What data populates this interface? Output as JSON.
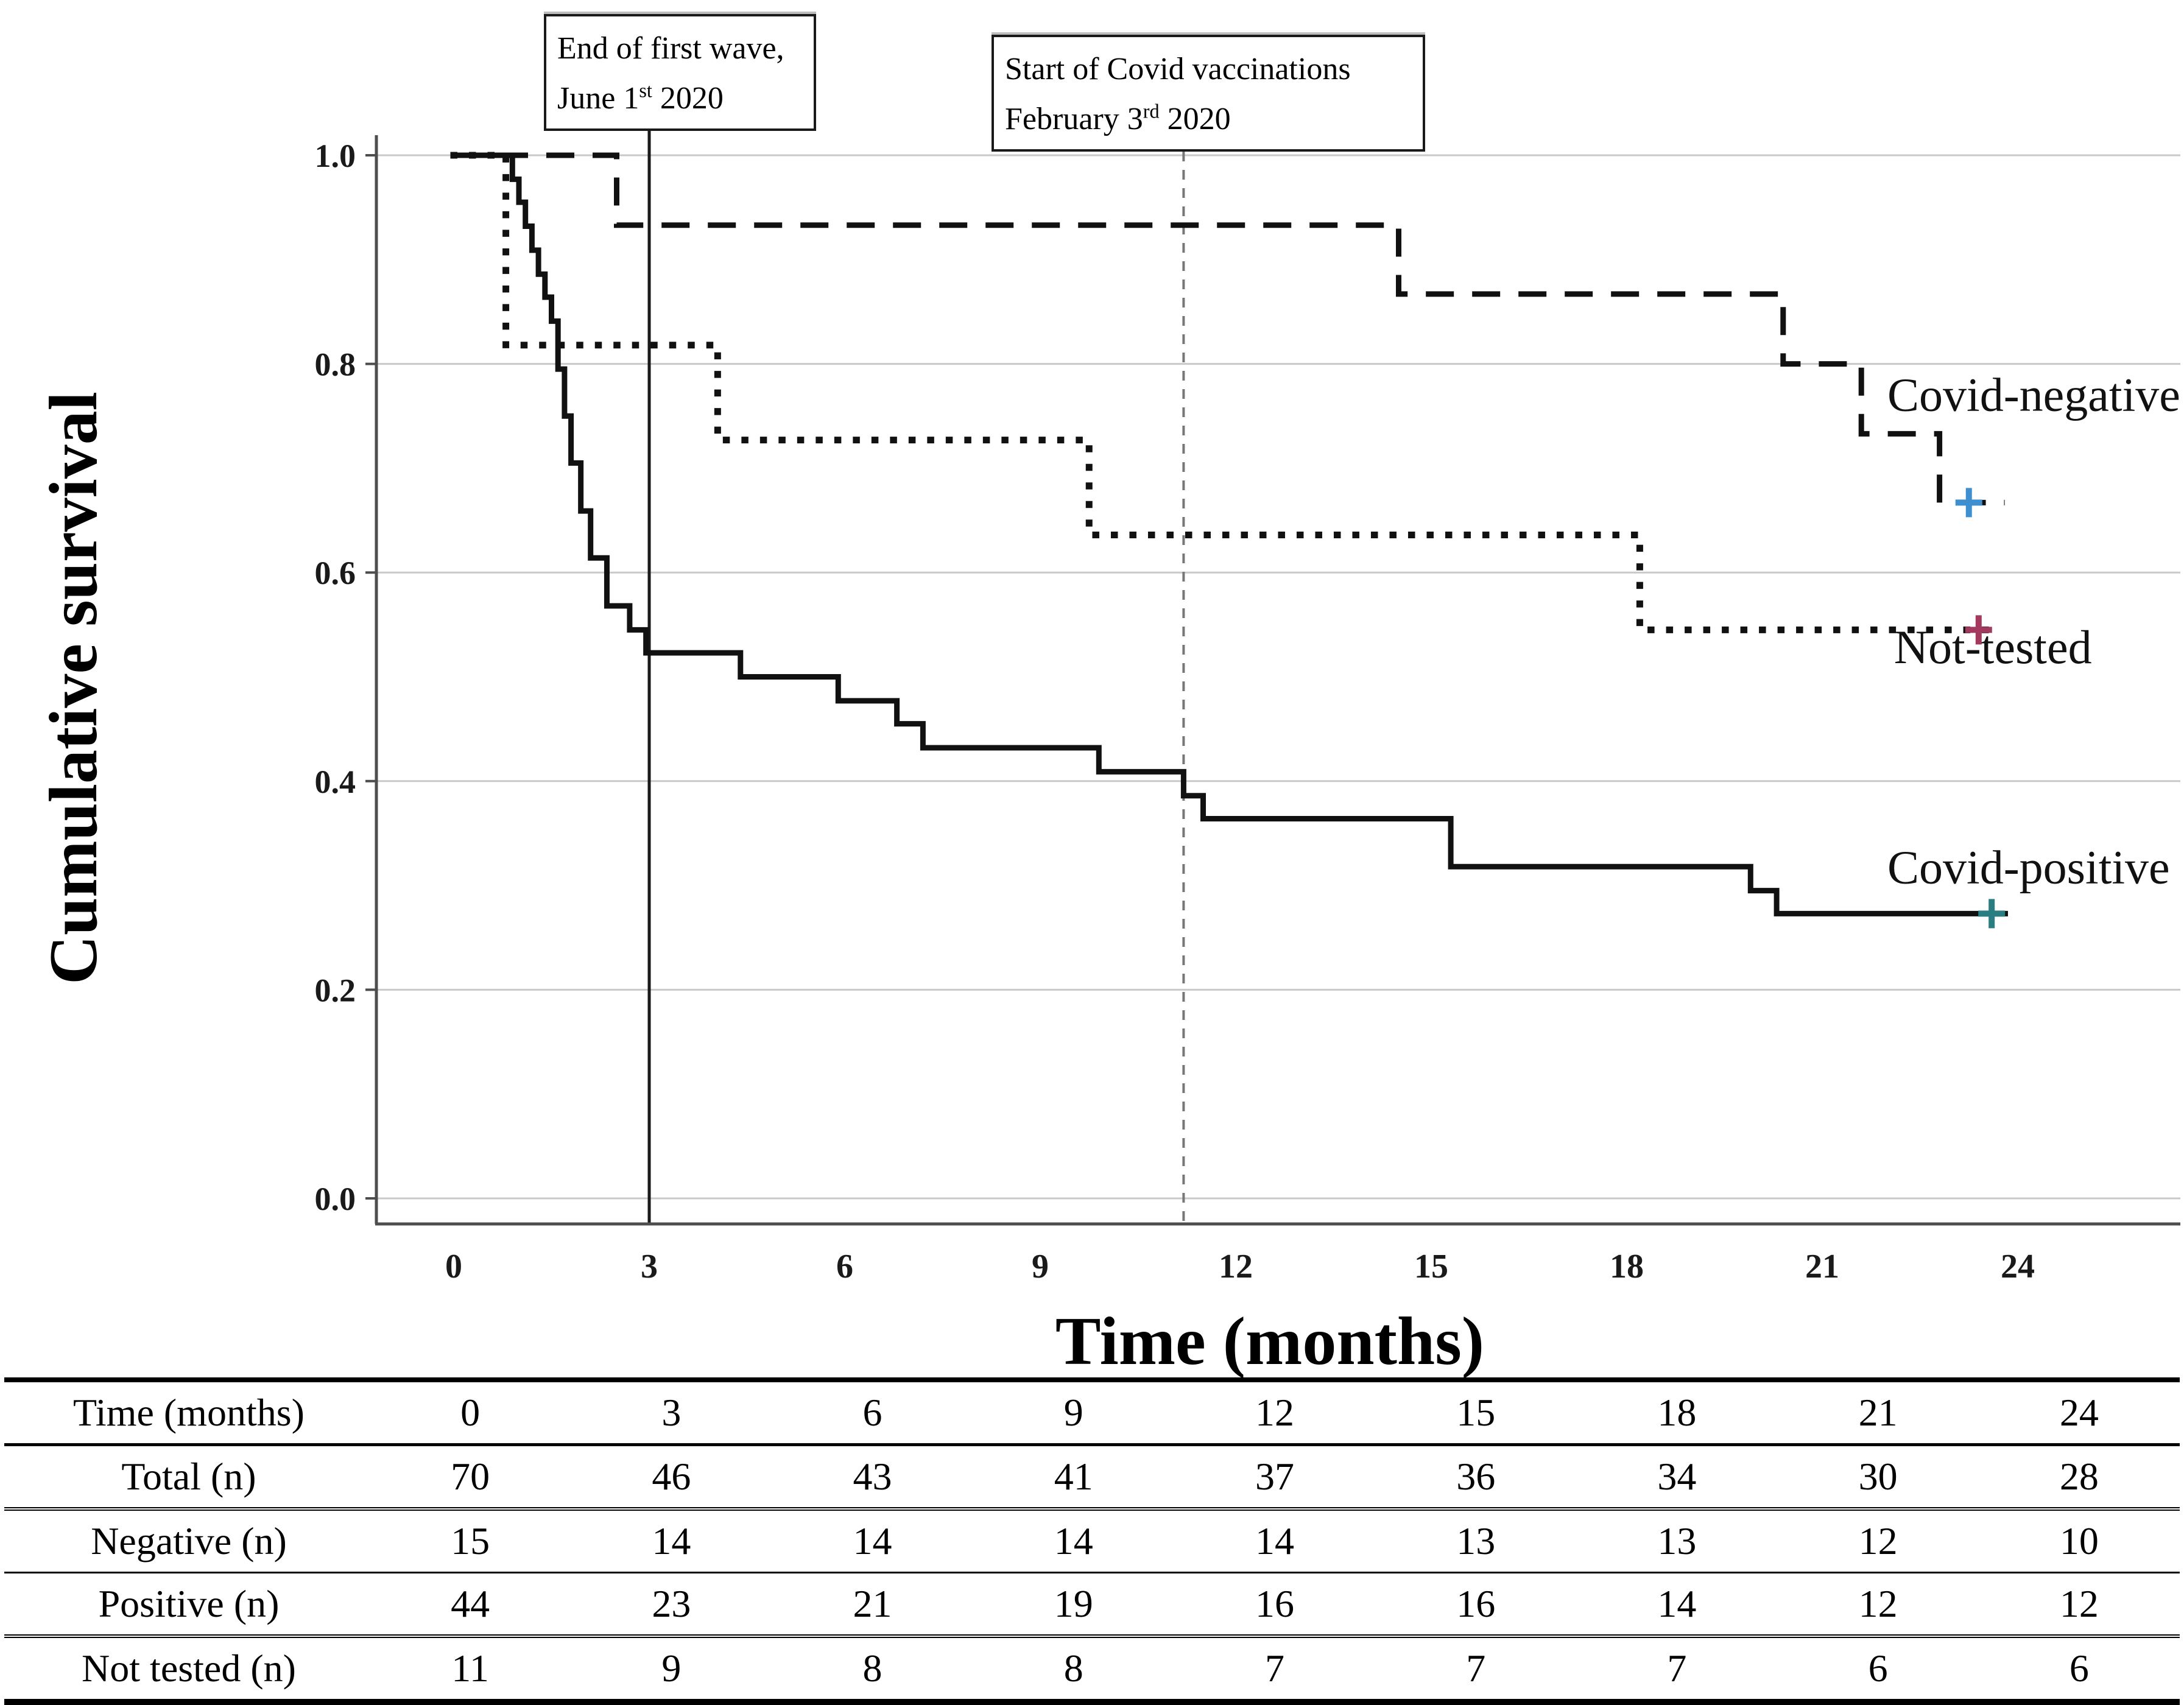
{
  "page": {
    "background": "#ffffff"
  },
  "chart_data": {
    "type": "line",
    "subtype": "kaplan-meier-step",
    "title": "",
    "xlabel": "Time (months)",
    "ylabel": "Cumulative survival",
    "xlim": [
      0,
      24
    ],
    "ylim": [
      0.0,
      1.0
    ],
    "grid": true,
    "legend_position": "labels-at-line-ends",
    "xticks": [
      "0",
      "3",
      "6",
      "9",
      "12",
      "15",
      "18",
      "21",
      "24"
    ],
    "yticks": [
      {
        "label": "1.0",
        "v": 1.0
      },
      {
        "label": "0.8",
        "v": 0.8
      },
      {
        "label": "0.6",
        "v": 0.6
      },
      {
        "label": "0.4",
        "v": 0.4
      },
      {
        "label": "0.2",
        "v": 0.2
      },
      {
        "label": "0.0",
        "v": 0.0
      }
    ],
    "series": [
      {
        "name": "Covid-negative",
        "line_style": "dashed",
        "color": "#111111",
        "steps": [
          [
            0,
            1.0
          ],
          [
            2.5,
            0.933
          ],
          [
            14.5,
            0.867
          ],
          [
            20.4,
            0.8
          ],
          [
            21.6,
            0.733
          ],
          [
            22.8,
            0.667
          ]
        ],
        "line_end_x": 23.8,
        "censor_mark": {
          "x": 23.25,
          "y": 0.667,
          "color": "#3e8fd0",
          "shape": "plus"
        },
        "label_pos": {
          "x": 22.0,
          "y": 0.755
        }
      },
      {
        "name": "Not-tested",
        "line_style": "dotted",
        "color": "#111111",
        "steps": [
          [
            0,
            1.0
          ],
          [
            0.8,
            0.818
          ],
          [
            4.05,
            0.727
          ],
          [
            9.75,
            0.636
          ],
          [
            18.2,
            0.545
          ]
        ],
        "line_end_x": 23.75,
        "censor_mark": {
          "x": 23.4,
          "y": 0.545,
          "color": "#a23a60",
          "shape": "plus"
        },
        "label_pos": {
          "x": 22.1,
          "y": 0.513
        }
      },
      {
        "name": "Covid-positive",
        "line_style": "solid",
        "color": "#111111",
        "steps": [
          [
            0,
            1.0
          ],
          [
            0.9,
            0.977
          ],
          [
            1.0,
            0.955
          ],
          [
            1.1,
            0.932
          ],
          [
            1.2,
            0.909
          ],
          [
            1.3,
            0.886
          ],
          [
            1.4,
            0.864
          ],
          [
            1.5,
            0.841
          ],
          [
            1.6,
            0.795
          ],
          [
            1.7,
            0.75
          ],
          [
            1.8,
            0.705
          ],
          [
            1.95,
            0.659
          ],
          [
            2.1,
            0.614
          ],
          [
            2.35,
            0.568
          ],
          [
            2.7,
            0.545
          ],
          [
            2.95,
            0.523
          ],
          [
            4.4,
            0.5
          ],
          [
            5.9,
            0.477
          ],
          [
            6.8,
            0.455
          ],
          [
            7.2,
            0.432
          ],
          [
            9.9,
            0.409
          ],
          [
            11.2,
            0.386
          ],
          [
            11.5,
            0.364
          ],
          [
            15.3,
            0.318
          ],
          [
            19.9,
            0.295
          ],
          [
            20.3,
            0.273
          ]
        ],
        "line_end_x": 23.85,
        "censor_mark": {
          "x": 23.6,
          "y": 0.273,
          "color": "#2a7d80",
          "shape": "plus"
        },
        "label_pos": {
          "x": 22.0,
          "y": 0.302
        }
      }
    ],
    "reference_lines": [
      {
        "x": 3,
        "style": "solid",
        "color": "#1a1a1a",
        "label": "End of first wave, June 1st 2020"
      },
      {
        "x": 11.2,
        "style": "dashed",
        "color": "#777777",
        "label": "Start of Covid vaccinations February 3rd 2020"
      }
    ],
    "annotations": [
      {
        "line1": "End of first wave,",
        "line2_pre": "June 1",
        "line2_sup": "st",
        "line2_post": " 2020"
      },
      {
        "line1": "Start of Covid vaccinations",
        "line2_pre": "February 3",
        "line2_sup": "rd",
        "line2_post": " 2020"
      }
    ]
  },
  "risk_table": {
    "rows": [
      {
        "label": "Time (months)",
        "values": [
          "0",
          "3",
          "6",
          "9",
          "12",
          "15",
          "18",
          "21",
          "24"
        ]
      },
      {
        "label": "Total (n)",
        "values": [
          "70",
          "46",
          "43",
          "41",
          "37",
          "36",
          "34",
          "30",
          "28"
        ]
      },
      {
        "label": "Negative (n)",
        "values": [
          "15",
          "14",
          "14",
          "14",
          "14",
          "13",
          "13",
          "12",
          "10"
        ]
      },
      {
        "label": "Positive (n)",
        "values": [
          "44",
          "23",
          "21",
          "19",
          "16",
          "16",
          "14",
          "12",
          "12"
        ]
      },
      {
        "label": "Not tested (n)",
        "values": [
          "11",
          "9",
          "8",
          "8",
          "7",
          "7",
          "7",
          "6",
          "6"
        ]
      }
    ]
  }
}
